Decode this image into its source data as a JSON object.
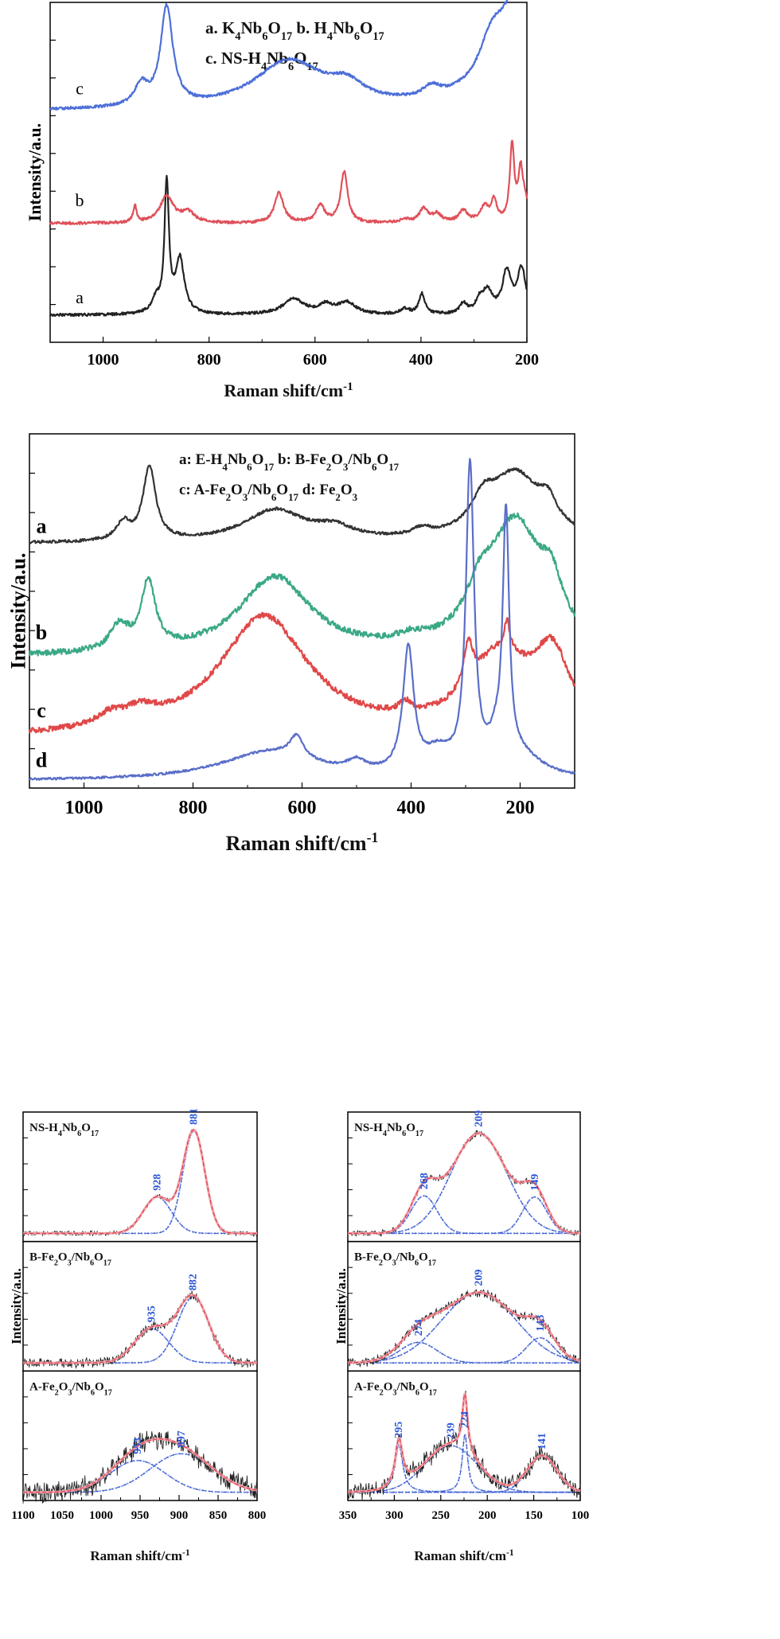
{
  "chart_data": [
    {
      "id": "top",
      "type": "line",
      "xlabel": "Raman shift/cm",
      "xlabel_sup": "-1",
      "ylabel": "Intensity/a.u.",
      "xlim": [
        1100,
        200
      ],
      "xticks": [
        1000,
        800,
        600,
        400,
        200
      ],
      "legend": [
        {
          "parts": [
            [
              "a. K"
            ],
            [
              "4",
              "sub"
            ],
            [
              "Nb"
            ],
            [
              "6",
              "sub"
            ],
            [
              "O"
            ],
            [
              "17",
              "sub"
            ],
            [
              "   b. H"
            ],
            [
              "4",
              "sub"
            ],
            [
              "Nb"
            ],
            [
              "6",
              "sub"
            ],
            [
              "O"
            ],
            [
              "17",
              "sub"
            ]
          ]
        },
        {
          "parts": [
            [
              "c. NS-H"
            ],
            [
              "4",
              "sub"
            ],
            [
              "Nb"
            ],
            [
              "6",
              "sub"
            ],
            [
              "O"
            ],
            [
              "17",
              "sub"
            ]
          ]
        }
      ],
      "series": [
        {
          "name": "a",
          "color": "#222222",
          "offset": 0.08,
          "noise": 0.004,
          "peaks": [
            [
              880,
              0.38,
              5
            ],
            [
              855,
              0.16,
              10
            ],
            [
              900,
              0.04,
              10
            ],
            [
              640,
              0.045,
              25
            ],
            [
              580,
              0.025,
              15
            ],
            [
              540,
              0.035,
              20
            ],
            [
              430,
              0.015,
              10
            ],
            [
              398,
              0.06,
              7
            ],
            [
              320,
              0.03,
              8
            ],
            [
              275,
              0.065,
              12
            ],
            [
              238,
              0.12,
              10
            ],
            [
              210,
              0.13,
              10
            ],
            [
              290,
              0.03,
              8
            ]
          ]
        },
        {
          "name": "b",
          "color": "#e0505a",
          "offset": 0.35,
          "noise": 0.004,
          "peaks": [
            [
              940,
              0.05,
              4
            ],
            [
              880,
              0.08,
              15
            ],
            [
              840,
              0.03,
              15
            ],
            [
              668,
              0.09,
              10
            ],
            [
              590,
              0.05,
              10
            ],
            [
              545,
              0.15,
              8
            ],
            [
              430,
              0.01,
              10
            ],
            [
              395,
              0.04,
              10
            ],
            [
              370,
              0.025,
              10
            ],
            [
              320,
              0.035,
              10
            ],
            [
              280,
              0.045,
              10
            ],
            [
              262,
              0.06,
              6
            ],
            [
              228,
              0.22,
              5
            ],
            [
              212,
              0.12,
              5
            ],
            [
              205,
              0.06,
              10
            ]
          ]
        },
        {
          "name": "c",
          "color": "#4d6fd8",
          "offset": 0.68,
          "noise": 0.004,
          "peaks": [
            [
              880,
              0.29,
              14
            ],
            [
              928,
              0.06,
              15
            ],
            [
              650,
              0.14,
              80
            ],
            [
              540,
              0.05,
              40
            ],
            [
              380,
              0.03,
              20
            ],
            [
              268,
              0.09,
              25
            ],
            [
              209,
              0.36,
              55
            ]
          ]
        }
      ],
      "series_labels": [
        [
          "a",
          0.115
        ],
        [
          "b",
          0.4
        ],
        [
          "c",
          0.73
        ]
      ]
    },
    {
      "id": "middle",
      "type": "line",
      "xlabel": "Raman shift/cm",
      "xlabel_sup": "-1",
      "ylabel": "Intensity/a.u.",
      "xlim": [
        1100,
        100
      ],
      "xticks": [
        1000,
        800,
        600,
        400,
        200
      ],
      "legend": [
        {
          "parts": [
            [
              "a: E-H"
            ],
            [
              "4",
              "sub"
            ],
            [
              "Nb"
            ],
            [
              "6",
              "sub"
            ],
            [
              "O"
            ],
            [
              "17",
              "sub"
            ],
            [
              "        b: B-Fe"
            ],
            [
              "2",
              "sub"
            ],
            [
              "O"
            ],
            [
              "3",
              "sub"
            ],
            [
              "/Nb"
            ],
            [
              "6",
              "sub"
            ],
            [
              "O"
            ],
            [
              "17",
              "sub"
            ]
          ]
        },
        {
          "parts": [
            [
              "c: A-Fe"
            ],
            [
              "2",
              "sub"
            ],
            [
              "O"
            ],
            [
              "3",
              "sub"
            ],
            [
              "/Nb"
            ],
            [
              "6",
              "sub"
            ],
            [
              "O"
            ],
            [
              "17",
              "sub"
            ],
            [
              "    d: Fe"
            ],
            [
              "2",
              "sub"
            ],
            [
              "O"
            ],
            [
              "3",
              "sub"
            ]
          ]
        }
      ],
      "series": [
        {
          "name": "a",
          "color": "#333333",
          "offset": 0.69,
          "noise": 0.004,
          "peaks": [
            [
              880,
              0.21,
              14
            ],
            [
              928,
              0.05,
              15
            ],
            [
              650,
              0.09,
              70
            ],
            [
              540,
              0.03,
              40
            ],
            [
              380,
              0.02,
              20
            ],
            [
              268,
              0.07,
              25
            ],
            [
              209,
              0.19,
              60
            ],
            [
              149,
              0.06,
              20
            ]
          ]
        },
        {
          "name": "b",
          "color": "#3aa886",
          "offset": 0.37,
          "noise": 0.008,
          "peaks": [
            [
              882,
              0.19,
              16
            ],
            [
              935,
              0.07,
              20
            ],
            [
              650,
              0.22,
              80
            ],
            [
              400,
              0.02,
              30
            ],
            [
              274,
              0.1,
              30
            ],
            [
              209,
              0.36,
              60
            ],
            [
              143,
              0.12,
              25
            ]
          ]
        },
        {
          "name": "c",
          "color": "#e04848",
          "offset": 0.14,
          "noise": 0.008,
          "peaks": [
            [
              897,
              0.04,
              40
            ],
            [
              953,
              0.03,
              30
            ],
            [
              670,
              0.34,
              100
            ],
            [
              410,
              0.03,
              15
            ],
            [
              295,
              0.12,
              10
            ],
            [
              239,
              0.21,
              70
            ],
            [
              224,
              0.08,
              6
            ],
            [
              141,
              0.2,
              40
            ]
          ]
        },
        {
          "name": "d",
          "color": "#5a6ec8",
          "offset": 0.02,
          "noise": 0.003,
          "peaks": [
            [
              660,
              0.08,
              110
            ],
            [
              610,
              0.06,
              15
            ],
            [
              500,
              0.03,
              20
            ],
            [
              405,
              0.35,
              12
            ],
            [
              350,
              0.06,
              30
            ],
            [
              292,
              0.86,
              9
            ],
            [
              245,
              0.06,
              15
            ],
            [
              226,
              0.69,
              7
            ],
            [
              200,
              0.06,
              50
            ]
          ]
        }
      ],
      "series_labels": [
        [
          "a",
          0.72
        ],
        [
          "b",
          0.42
        ],
        [
          "c",
          0.2
        ],
        [
          "d",
          0.06
        ]
      ]
    },
    {
      "id": "bottom-left",
      "type": "line",
      "xlabel": "Raman shift/cm",
      "xlabel_sup": "-1",
      "ylabel": "Intensity/a.u.",
      "xlim": [
        1100,
        800
      ],
      "xticks": [
        1100,
        1050,
        1000,
        950,
        900,
        850,
        800
      ],
      "panels": [
        {
          "label_parts": [
            [
              "NS-H"
            ],
            [
              "4",
              "sub"
            ],
            [
              "Nb"
            ],
            [
              "6",
              "sub"
            ],
            [
              "O"
            ],
            [
              "17",
              "sub"
            ]
          ],
          "fits": [
            [
              928,
              0.32,
              18,
              "928"
            ],
            [
              881,
              0.9,
              14,
              "881"
            ]
          ],
          "noise": 0.015
        },
        {
          "label_parts": [
            [
              "B-Fe"
            ],
            [
              "2",
              "sub"
            ],
            [
              "O"
            ],
            [
              "3",
              "sub"
            ],
            [
              "/Nb"
            ],
            [
              "6",
              "sub"
            ],
            [
              "O"
            ],
            [
              "17",
              "sub"
            ]
          ],
          "fits": [
            [
              935,
              0.3,
              22,
              "935"
            ],
            [
              882,
              0.58,
              20,
              "882"
            ]
          ],
          "noise": 0.03
        },
        {
          "label_parts": [
            [
              "A-Fe"
            ],
            [
              "2",
              "sub"
            ],
            [
              "O"
            ],
            [
              "3",
              "sub"
            ],
            [
              "/Nb"
            ],
            [
              "6",
              "sub"
            ],
            [
              "O"
            ],
            [
              "17",
              "sub"
            ]
          ],
          "fits": [
            [
              953,
              0.28,
              35,
              "953"
            ],
            [
              897,
              0.34,
              40,
              "897"
            ]
          ],
          "noise": 0.07
        }
      ]
    },
    {
      "id": "bottom-right",
      "type": "line",
      "xlabel": "Raman shift/cm",
      "xlabel_sup": "-1",
      "ylabel": "Intensity/a.u.",
      "xlim": [
        350,
        100
      ],
      "xticks": [
        350,
        300,
        250,
        200,
        150,
        100
      ],
      "panels": [
        {
          "label_parts": [
            [
              "NS-H"
            ],
            [
              "4",
              "sub"
            ],
            [
              "Nb"
            ],
            [
              "6",
              "sub"
            ],
            [
              "O"
            ],
            [
              "17",
              "sub"
            ]
          ],
          "fits": [
            [
              268,
              0.33,
              14,
              "268"
            ],
            [
              209,
              0.88,
              30,
              "209"
            ],
            [
              149,
              0.32,
              13,
              "149"
            ]
          ],
          "noise": 0.02
        },
        {
          "label_parts": [
            [
              "B-Fe"
            ],
            [
              "2",
              "sub"
            ],
            [
              "O"
            ],
            [
              "3",
              "sub"
            ],
            [
              "/Nb"
            ],
            [
              "6",
              "sub"
            ],
            [
              "O"
            ],
            [
              "17",
              "sub"
            ]
          ],
          "fits": [
            [
              274,
              0.18,
              20,
              "274"
            ],
            [
              209,
              0.62,
              40,
              "209"
            ],
            [
              143,
              0.22,
              15,
              "143"
            ]
          ],
          "noise": 0.03
        },
        {
          "label_parts": [
            [
              "A-Fe"
            ],
            [
              "2",
              "sub"
            ],
            [
              "O"
            ],
            [
              "3",
              "sub"
            ],
            [
              "/Nb"
            ],
            [
              "6",
              "sub"
            ],
            [
              "O"
            ],
            [
              "17",
              "sub"
            ]
          ],
          "fits": [
            [
              295,
              0.42,
              5,
              "295"
            ],
            [
              239,
              0.41,
              28,
              "239"
            ],
            [
              224,
              0.51,
              3.5,
              "224"
            ],
            [
              141,
              0.32,
              16,
              "141"
            ]
          ],
          "noise": 0.06
        }
      ]
    }
  ]
}
